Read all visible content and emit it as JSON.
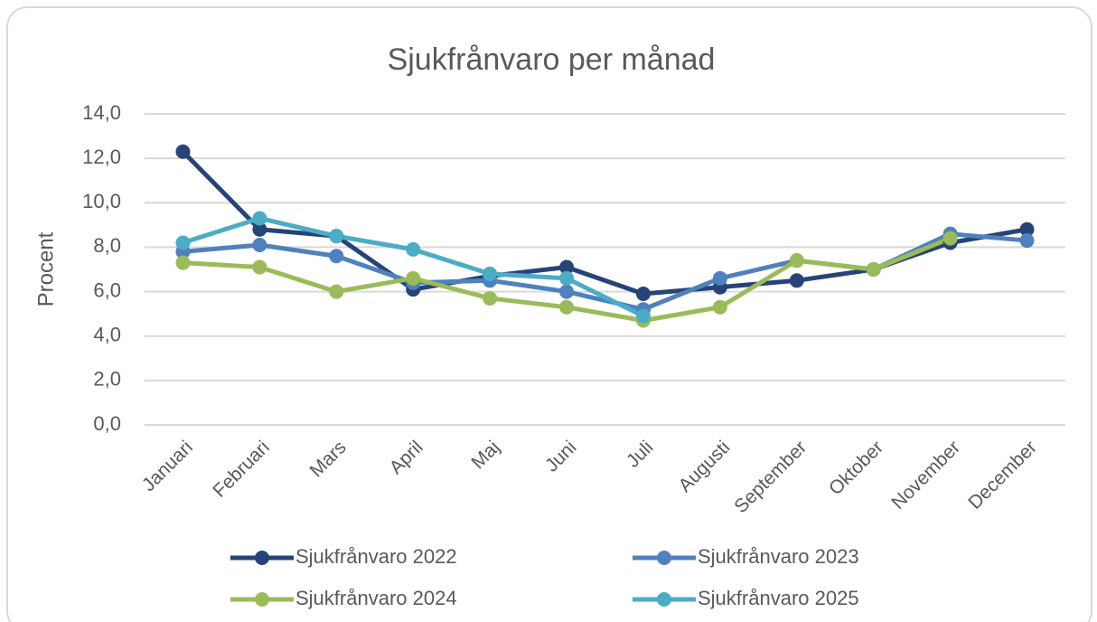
{
  "chart_data": {
    "type": "line",
    "title": "Sjukfrånvaro per månad",
    "y_label": "Procent",
    "categories": [
      "Januari",
      "Februari",
      "Mars",
      "April",
      "Maj",
      "Juni",
      "Juli",
      "Augusti",
      "September",
      "Oktober",
      "November",
      "December"
    ],
    "series": [
      {
        "name": "Sjukfrånvaro 2022",
        "color": "#264478",
        "values": [
          12.3,
          8.8,
          8.5,
          6.1,
          6.7,
          7.1,
          5.9,
          6.2,
          6.5,
          7.0,
          8.2,
          8.8
        ]
      },
      {
        "name": "Sjukfrånvaro 2023",
        "color": "#4f81bd",
        "values": [
          7.8,
          8.1,
          7.6,
          6.4,
          6.5,
          6.0,
          5.2,
          6.6,
          7.4,
          7.0,
          8.6,
          8.3
        ]
      },
      {
        "name": "Sjukfrånvaro 2024",
        "color": "#9bbb59",
        "values": [
          7.3,
          7.1,
          6.0,
          6.6,
          5.7,
          5.3,
          4.7,
          5.3,
          7.4,
          7.0,
          8.4,
          null
        ]
      },
      {
        "name": "Sjukfrånvaro 2025",
        "color": "#4bacc6",
        "values": [
          8.2,
          9.3,
          8.5,
          7.9,
          6.8,
          6.6,
          4.9,
          null,
          null,
          null,
          null,
          null
        ]
      }
    ],
    "ylim": [
      0,
      14
    ],
    "yticks": [
      {
        "value": 0,
        "label": "0,0"
      },
      {
        "value": 2,
        "label": "2,0"
      },
      {
        "value": 4,
        "label": "4,0"
      },
      {
        "value": 6,
        "label": "6,0"
      },
      {
        "value": 8,
        "label": "8,0"
      },
      {
        "value": 10,
        "label": "10,0"
      },
      {
        "value": 12,
        "label": "12,0"
      },
      {
        "value": 14,
        "label": "14,0"
      }
    ],
    "grid": true,
    "legend": "bottom"
  }
}
